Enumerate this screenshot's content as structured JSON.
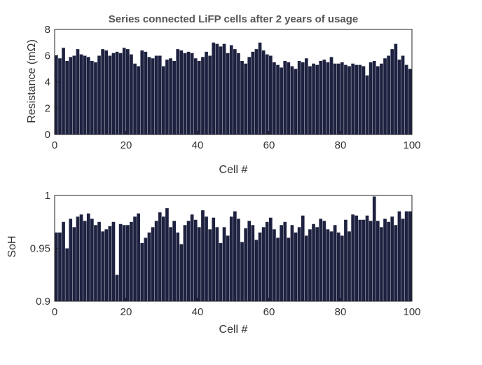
{
  "chart_data": [
    {
      "type": "bar",
      "title": "Series connected LiFP cells after 2 years of usage",
      "xlabel": "Cell #",
      "ylabel": "Resistance (mΩ)",
      "xlim": [
        0,
        100
      ],
      "ylim": [
        0,
        8
      ],
      "xticks": [
        "0",
        "20",
        "40",
        "60",
        "80",
        "100"
      ],
      "yticks": [
        "0",
        "2",
        "4",
        "6",
        "8"
      ],
      "bar_color": "#1e2240",
      "grid": false,
      "values": [
        6.0,
        5.8,
        6.6,
        5.6,
        5.9,
        6.0,
        6.5,
        6.1,
        6.0,
        5.9,
        5.6,
        5.5,
        6.0,
        6.5,
        6.4,
        6.0,
        6.2,
        6.3,
        6.2,
        6.6,
        6.5,
        6.1,
        5.4,
        5.2,
        6.4,
        6.3,
        5.9,
        5.8,
        6.0,
        6.0,
        5.2,
        5.7,
        5.8,
        5.6,
        6.5,
        6.4,
        6.2,
        6.3,
        6.2,
        5.8,
        5.6,
        5.9,
        6.3,
        6.0,
        7.0,
        6.9,
        6.7,
        6.9,
        6.2,
        6.8,
        6.5,
        6.2,
        5.6,
        5.4,
        5.9,
        6.3,
        6.5,
        7.0,
        6.4,
        6.1,
        6.0,
        5.5,
        5.3,
        5.1,
        5.6,
        5.5,
        5.2,
        5.0,
        5.6,
        5.5,
        5.8,
        5.2,
        5.4,
        5.3,
        5.6,
        5.7,
        5.5,
        5.9,
        5.4,
        5.4,
        5.5,
        5.3,
        5.2,
        5.4,
        5.3,
        5.3,
        5.2,
        4.5,
        5.5,
        5.6,
        5.2,
        5.4,
        5.8,
        6.0,
        6.5,
        6.9,
        5.7,
        6.0,
        5.3,
        5.0
      ]
    },
    {
      "type": "bar",
      "title": "",
      "xlabel": "Cell #",
      "ylabel": "SoH",
      "xlim": [
        0,
        100
      ],
      "ylim": [
        0.9,
        1.0
      ],
      "xticks": [
        "0",
        "20",
        "40",
        "60",
        "80",
        "100"
      ],
      "yticks": [
        "0.9",
        "0.95",
        "1"
      ],
      "bar_color": "#1e2240",
      "grid": false,
      "values": [
        0.965,
        0.965,
        0.975,
        0.95,
        0.978,
        0.97,
        0.98,
        0.982,
        0.976,
        0.983,
        0.978,
        0.972,
        0.975,
        0.966,
        0.968,
        0.971,
        0.975,
        0.925,
        0.973,
        0.972,
        0.972,
        0.975,
        0.98,
        0.983,
        0.955,
        0.96,
        0.965,
        0.97,
        0.976,
        0.984,
        0.98,
        0.988,
        0.97,
        0.976,
        0.965,
        0.954,
        0.972,
        0.976,
        0.982,
        0.977,
        0.97,
        0.986,
        0.98,
        0.968,
        0.979,
        0.97,
        0.955,
        0.97,
        0.962,
        0.98,
        0.985,
        0.978,
        0.956,
        0.969,
        0.976,
        0.972,
        0.958,
        0.965,
        0.97,
        0.975,
        0.979,
        0.968,
        0.96,
        0.972,
        0.975,
        0.96,
        0.972,
        0.965,
        0.97,
        0.981,
        0.962,
        0.968,
        0.973,
        0.97,
        0.978,
        0.976,
        0.968,
        0.966,
        0.972,
        0.965,
        0.962,
        0.977,
        0.966,
        0.982,
        0.981,
        0.977,
        0.977,
        0.981,
        0.976,
        0.999,
        0.976,
        0.97,
        0.978,
        0.975,
        0.98,
        0.972,
        0.985,
        0.978,
        0.985,
        0.985
      ]
    }
  ]
}
